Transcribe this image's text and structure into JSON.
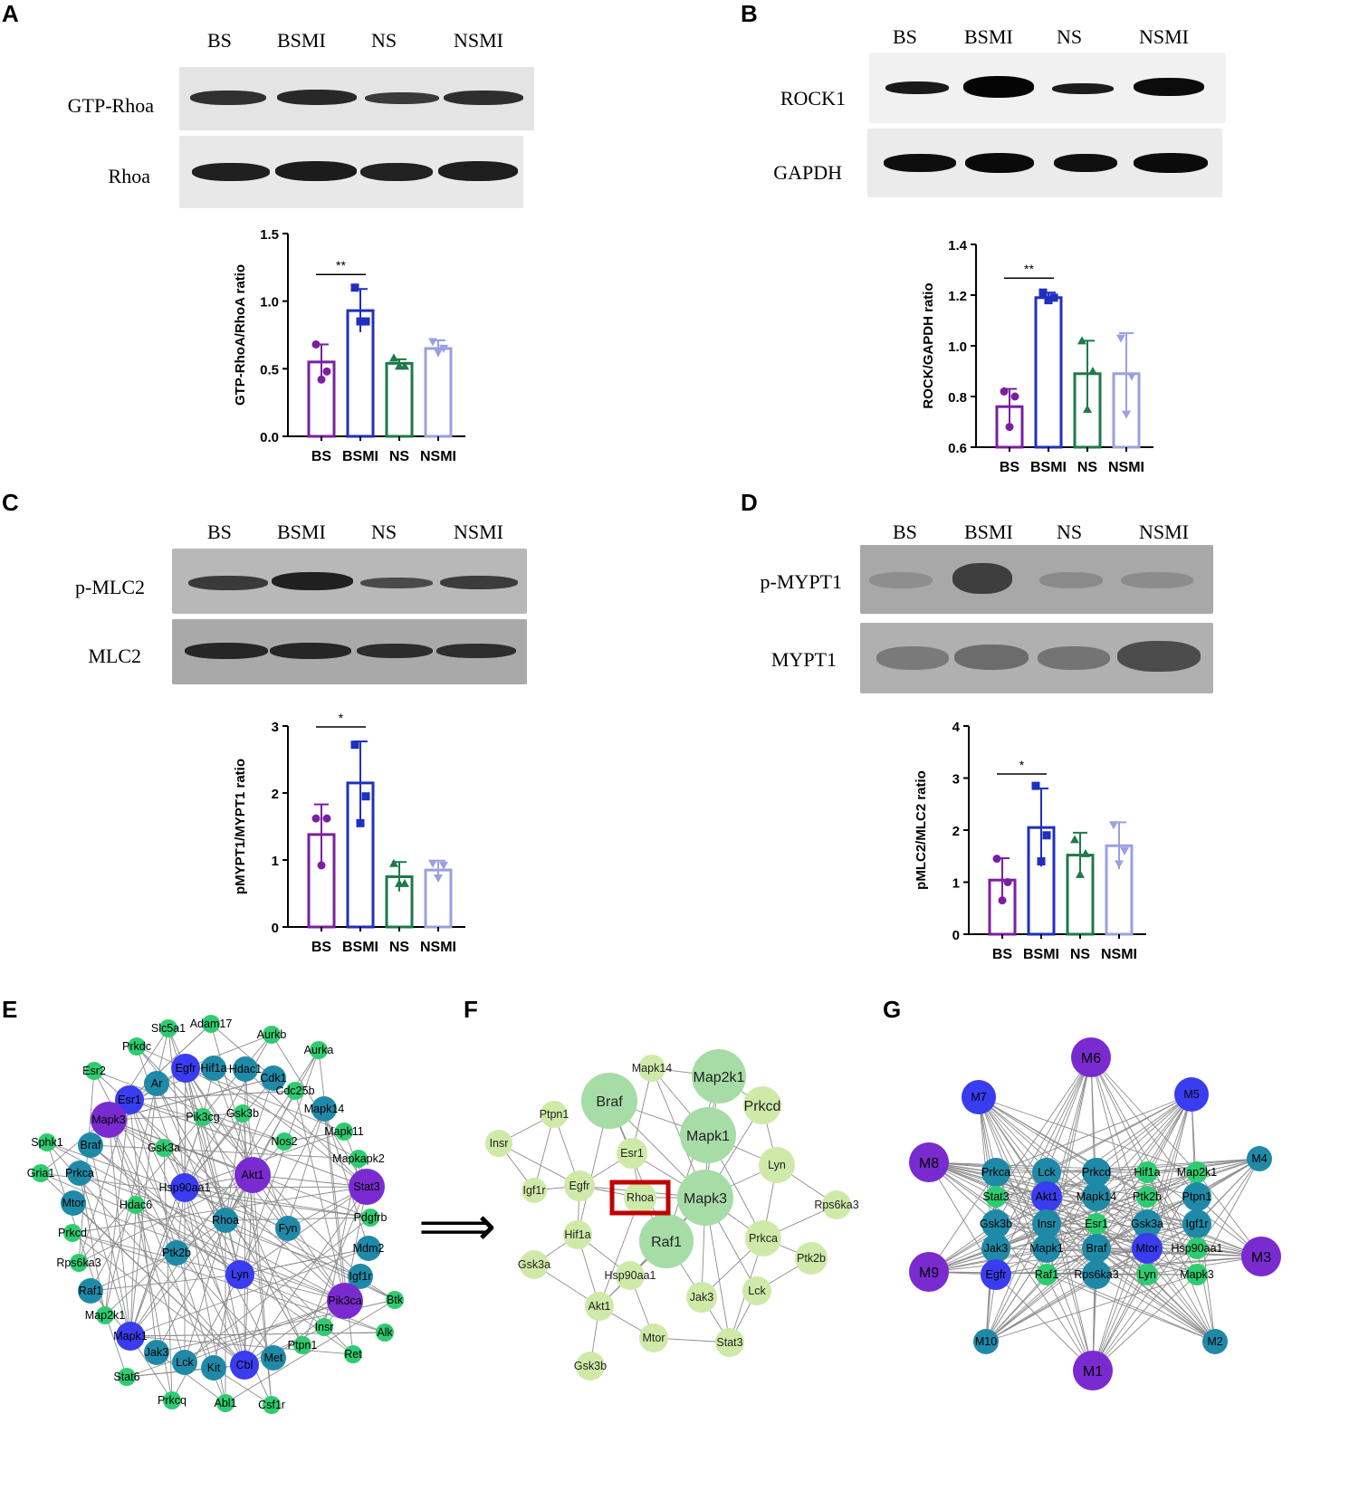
{
  "panels": {
    "A": {
      "letter": "A",
      "lanes": [
        "BS",
        "BSMI",
        "NS",
        "NSMI"
      ],
      "rows": [
        "GTP-Rhoa",
        "Rhoa"
      ]
    },
    "B": {
      "letter": "B",
      "lanes": [
        "BS",
        "BSMI",
        "NS",
        "NSMI"
      ],
      "rows": [
        "ROCK1",
        "GAPDH"
      ]
    },
    "C": {
      "letter": "C",
      "lanes": [
        "BS",
        "BSMI",
        "NS",
        "NSMI"
      ],
      "rows": [
        "p-MLC2",
        "MLC2"
      ]
    },
    "D": {
      "letter": "D",
      "lanes": [
        "BS",
        "BSMI",
        "NS",
        "NSMI"
      ],
      "rows": [
        "p-MYPT1",
        "MYPT1"
      ]
    },
    "E": {
      "letter": "E"
    },
    "F": {
      "letter": "F"
    },
    "G": {
      "letter": "G"
    }
  },
  "colors": {
    "BS": "#7b1fa2",
    "BSMI": "#1f2fbf",
    "NS": "#1e7a4a",
    "NSMI": "#9aa0e0",
    "node_blue": "#3a3cf0",
    "node_purple": "#7a2bd0",
    "node_teal": "#1f8aa8",
    "node_green": "#2ecc71",
    "node_lightgreen": "#cfeaa8",
    "node_midgreen": "#a6dca6",
    "highlight_box": "#c00000"
  },
  "arrow_symbol": "⟹",
  "chart_data": [
    {
      "panel": "A",
      "type": "bar",
      "categories": [
        "BS",
        "BSMI",
        "NS",
        "NSMI"
      ],
      "values": [
        0.55,
        0.93,
        0.54,
        0.65
      ],
      "errors": [
        0.13,
        0.16,
        0.03,
        0.06
      ],
      "points": [
        [
          0.68,
          0.48,
          0.42
        ],
        [
          1.1,
          0.85,
          0.85
        ],
        [
          0.58,
          0.52,
          0.52
        ],
        [
          0.7,
          0.65,
          0.62
        ]
      ],
      "ylabel": "GTP-RhoA/RhoA ratio",
      "ylim": [
        0.0,
        1.5
      ],
      "yticks": [
        "0.0",
        "0.5",
        "1.0",
        "1.5"
      ],
      "significance": {
        "from": 0,
        "to": 1,
        "label": "**"
      }
    },
    {
      "panel": "B",
      "type": "bar",
      "categories": [
        "BS",
        "BSMI",
        "NS",
        "NSMI"
      ],
      "values": [
        0.76,
        1.19,
        0.89,
        0.89
      ],
      "errors": [
        0.07,
        0.02,
        0.13,
        0.16
      ],
      "points": [
        [
          0.82,
          0.8,
          0.68
        ],
        [
          1.21,
          1.19,
          1.18
        ],
        [
          1.02,
          0.9,
          0.75
        ],
        [
          1.03,
          0.88,
          0.73
        ]
      ],
      "ylabel": "ROCK/GAPDH ratio",
      "ylim": [
        0.6,
        1.4
      ],
      "yticks": [
        "0.6",
        "0.8",
        "1.0",
        "1.2",
        "1.4"
      ],
      "significance": {
        "from": 0,
        "to": 1,
        "label": "**"
      }
    },
    {
      "panel": "C",
      "type": "bar",
      "categories": [
        "BS",
        "BSMI",
        "NS",
        "NSMI"
      ],
      "values": [
        1.38,
        2.15,
        0.75,
        0.85
      ],
      "errors": [
        0.45,
        0.62,
        0.22,
        0.14
      ],
      "points": [
        [
          1.62,
          1.62,
          0.92
        ],
        [
          2.72,
          1.95,
          1.55
        ],
        [
          0.95,
          0.65,
          0.65
        ],
        [
          0.95,
          0.92,
          0.73
        ]
      ],
      "ylabel": "pMYPT1/MYPT1 ratio",
      "ylim": [
        0,
        3
      ],
      "yticks": [
        "0",
        "1",
        "2",
        "3"
      ],
      "significance": {
        "from": 0,
        "to": 1,
        "label": "*"
      }
    },
    {
      "panel": "D",
      "type": "bar",
      "categories": [
        "BS",
        "BSMI",
        "NS",
        "NSMI"
      ],
      "values": [
        1.04,
        2.05,
        1.52,
        1.7
      ],
      "errors": [
        0.42,
        0.75,
        0.43,
        0.45
      ],
      "points": [
        [
          1.45,
          1.0,
          0.65
        ],
        [
          2.85,
          1.9,
          1.4
        ],
        [
          1.82,
          1.55,
          1.15
        ],
        [
          2.1,
          1.6,
          1.35
        ]
      ],
      "ylabel": "pMLC2/MLC2 ratio",
      "ylim": [
        0,
        4
      ],
      "yticks": [
        "0",
        "1",
        "2",
        "3",
        "4"
      ],
      "significance": {
        "from": 0,
        "to": 1,
        "label": "*"
      }
    }
  ],
  "networkE": {
    "nodes": [
      {
        "label": "Slc5a1",
        "c": "green"
      },
      {
        "label": "Adam17",
        "c": "green"
      },
      {
        "label": "Aurkb",
        "c": "green"
      },
      {
        "label": "Prkdc",
        "c": "green"
      },
      {
        "label": "Aurka",
        "c": "green"
      },
      {
        "label": "Egfr",
        "c": "blue"
      },
      {
        "label": "Hif1a",
        "c": "teal"
      },
      {
        "label": "Hdac1",
        "c": "teal"
      },
      {
        "label": "Esr2",
        "c": "green"
      },
      {
        "label": "Ar",
        "c": "teal"
      },
      {
        "label": "Cdk1",
        "c": "teal"
      },
      {
        "label": "Cdc25b",
        "c": "green"
      },
      {
        "label": "Esr1",
        "c": "blue"
      },
      {
        "label": "Mapk14",
        "c": "teal"
      },
      {
        "label": "Pik3cg",
        "c": "green"
      },
      {
        "label": "Gsk3b",
        "c": "green"
      },
      {
        "label": "Mapk3",
        "c": "purple"
      },
      {
        "label": "Mapk11",
        "c": "green"
      },
      {
        "label": "Sphk1",
        "c": "green"
      },
      {
        "label": "Braf",
        "c": "teal"
      },
      {
        "label": "Gsk3a",
        "c": "green"
      },
      {
        "label": "Nos2",
        "c": "green"
      },
      {
        "label": "Mapkapk2",
        "c": "green"
      },
      {
        "label": "Gria1",
        "c": "green"
      },
      {
        "label": "Prkca",
        "c": "teal"
      },
      {
        "label": "Akt1",
        "c": "purple"
      },
      {
        "label": "Stat3",
        "c": "purple"
      },
      {
        "label": "Hsp90aa1",
        "c": "blue"
      },
      {
        "label": "Mtor",
        "c": "teal"
      },
      {
        "label": "Hdac6",
        "c": "green"
      },
      {
        "label": "Pdgfrb",
        "c": "green"
      },
      {
        "label": "Rhoa",
        "c": "teal"
      },
      {
        "label": "Fyn",
        "c": "teal"
      },
      {
        "label": "Prkcd",
        "c": "green"
      },
      {
        "label": "Mdm2",
        "c": "teal"
      },
      {
        "label": "Ptk2b",
        "c": "teal"
      },
      {
        "label": "Rps6ka3",
        "c": "green"
      },
      {
        "label": "Lyn",
        "c": "blue"
      },
      {
        "label": "Igf1r",
        "c": "teal"
      },
      {
        "label": "Raf1",
        "c": "teal"
      },
      {
        "label": "Btk",
        "c": "green"
      },
      {
        "label": "Map2k1",
        "c": "green"
      },
      {
        "label": "Pik3ca",
        "c": "purple"
      },
      {
        "label": "Insr",
        "c": "green"
      },
      {
        "label": "Alk",
        "c": "green"
      },
      {
        "label": "Mapk1",
        "c": "blue"
      },
      {
        "label": "Jak3",
        "c": "teal"
      },
      {
        "label": "Ptpn1",
        "c": "green"
      },
      {
        "label": "Met",
        "c": "teal"
      },
      {
        "label": "Ret",
        "c": "green"
      },
      {
        "label": "Lck",
        "c": "teal"
      },
      {
        "label": "Kit",
        "c": "teal"
      },
      {
        "label": "Cbl",
        "c": "blue"
      },
      {
        "label": "Stat6",
        "c": "green"
      },
      {
        "label": "Prkcq",
        "c": "green"
      },
      {
        "label": "Abl1",
        "c": "green"
      },
      {
        "label": "Csf1r",
        "c": "green"
      }
    ]
  },
  "networkF": {
    "nodes": [
      {
        "label": "Mapk14",
        "c": "lightgreen"
      },
      {
        "label": "Map2k1",
        "c": "midgreen"
      },
      {
        "label": "Braf",
        "c": "midgreen"
      },
      {
        "label": "Prkcd",
        "c": "lightgreen"
      },
      {
        "label": "Ptpn1",
        "c": "lightgreen"
      },
      {
        "label": "Mapk1",
        "c": "midgreen"
      },
      {
        "label": "Insr",
        "c": "lightgreen"
      },
      {
        "label": "Esr1",
        "c": "lightgreen"
      },
      {
        "label": "Lyn",
        "c": "lightgreen"
      },
      {
        "label": "Igf1r",
        "c": "lightgreen"
      },
      {
        "label": "Egfr",
        "c": "lightgreen"
      },
      {
        "label": "Rhoa",
        "c": "lightgreen"
      },
      {
        "label": "Mapk3",
        "c": "midgreen"
      },
      {
        "label": "Rps6ka3",
        "c": "lightgreen"
      },
      {
        "label": "Hif1a",
        "c": "lightgreen"
      },
      {
        "label": "Raf1",
        "c": "midgreen"
      },
      {
        "label": "Prkca",
        "c": "lightgreen"
      },
      {
        "label": "Gsk3a",
        "c": "lightgreen"
      },
      {
        "label": "Ptk2b",
        "c": "lightgreen"
      },
      {
        "label": "Hsp90aa1",
        "c": "lightgreen"
      },
      {
        "label": "Akt1",
        "c": "lightgreen"
      },
      {
        "label": "Jak3",
        "c": "lightgreen"
      },
      {
        "label": "Lck",
        "c": "lightgreen"
      },
      {
        "label": "Mtor",
        "c": "lightgreen"
      },
      {
        "label": "Stat3",
        "c": "lightgreen"
      },
      {
        "label": "Gsk3b",
        "c": "lightgreen"
      }
    ],
    "highlight": "Rhoa"
  },
  "networkG": {
    "nodes": [
      {
        "label": "M6",
        "c": "purple"
      },
      {
        "label": "M7",
        "c": "blue"
      },
      {
        "label": "M5",
        "c": "blue"
      },
      {
        "label": "M8",
        "c": "purple"
      },
      {
        "label": "M4",
        "c": "teal"
      },
      {
        "label": "Prkca",
        "c": "teal"
      },
      {
        "label": "Lck",
        "c": "teal"
      },
      {
        "label": "Prkcd",
        "c": "teal"
      },
      {
        "label": "Hif1a",
        "c": "green"
      },
      {
        "label": "Map2k1",
        "c": "green"
      },
      {
        "label": "Stat3",
        "c": "green"
      },
      {
        "label": "Akt1",
        "c": "blue"
      },
      {
        "label": "Mapk14",
        "c": "teal"
      },
      {
        "label": "Ptk2b",
        "c": "green"
      },
      {
        "label": "Ptpn1",
        "c": "teal"
      },
      {
        "label": "Gsk3b",
        "c": "teal"
      },
      {
        "label": "Insr",
        "c": "teal"
      },
      {
        "label": "Esr1",
        "c": "green"
      },
      {
        "label": "Gsk3a",
        "c": "teal"
      },
      {
        "label": "Igf1r",
        "c": "teal"
      },
      {
        "label": "Jak3",
        "c": "teal"
      },
      {
        "label": "Mapk1",
        "c": "teal"
      },
      {
        "label": "Braf",
        "c": "teal"
      },
      {
        "label": "Mtor",
        "c": "blue"
      },
      {
        "label": "Hsp90aa1",
        "c": "green"
      },
      {
        "label": "M9",
        "c": "purple"
      },
      {
        "label": "M3",
        "c": "purple"
      },
      {
        "label": "Egfr",
        "c": "blue"
      },
      {
        "label": "Raf1",
        "c": "green"
      },
      {
        "label": "Rps6ka3",
        "c": "teal"
      },
      {
        "label": "Lyn",
        "c": "green"
      },
      {
        "label": "Mapk3",
        "c": "green"
      },
      {
        "label": "M10",
        "c": "teal"
      },
      {
        "label": "M2",
        "c": "teal"
      },
      {
        "label": "M1",
        "c": "purple"
      }
    ]
  }
}
